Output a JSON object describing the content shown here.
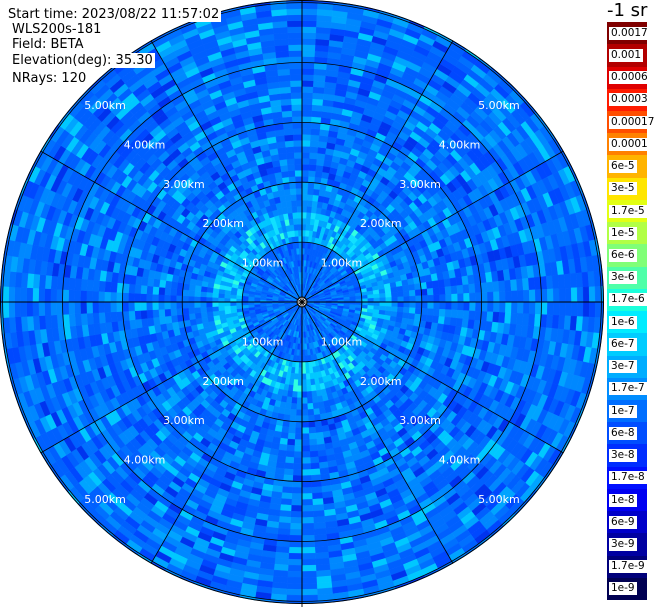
{
  "info": {
    "start_time": "Start time: 2023/08/22 11:57:02",
    "instrument": "WLS200s-181",
    "field": "Field: BETA",
    "elevation": "Elevation(deg): 35.30",
    "nrays": "NRays: 120"
  },
  "colorbar": {
    "title": "-1 sr",
    "labels": [
      "0.0017",
      "0.001",
      "0.0006",
      "0.0003",
      "0.00017",
      "0.0001",
      "6e-5",
      "3e-5",
      "1.7e-5",
      "1e-5",
      "6e-6",
      "3e-6",
      "1.7e-6",
      "1e-6",
      "6e-7",
      "3e-7",
      "1.7e-7",
      "1e-7",
      "6e-8",
      "3e-8",
      "1.7e-8",
      "1e-8",
      "6e-9",
      "3e-9",
      "1.7e-9",
      "1e-9"
    ],
    "colors": [
      "#7f0000",
      "#b20000",
      "#df0000",
      "#ff1b00",
      "#ff4e00",
      "#ff8100",
      "#ffb400",
      "#ffe500",
      "#e2ff14",
      "#b1ff45",
      "#80ff77",
      "#4effa8",
      "#1cffdb",
      "#00ecff",
      "#00ccff",
      "#00adff",
      "#008dff",
      "#006eff",
      "#004eff",
      "#002eff",
      "#000fff",
      "#0000f1",
      "#0000c9",
      "#0000a1",
      "#00007a",
      "#000052"
    ]
  },
  "chart_data": {
    "type": "heatmap",
    "subtype": "polar PPI scan",
    "field": "BETA",
    "units": "-1 sr",
    "scale": "log",
    "nrays": 120,
    "elevation_deg": 35.3,
    "range_rings_km": [
      1,
      2,
      3,
      4,
      5
    ],
    "range_ring_labels": [
      "1.00km",
      "2.00km",
      "3.00km",
      "4.00km",
      "5.00km"
    ],
    "max_range_km": 5.0,
    "azimuth_spokes_deg": [
      0,
      30,
      60,
      90,
      120,
      150,
      180,
      210,
      240,
      270,
      300,
      330
    ],
    "dominant_value_range": [
      "1.7e-8",
      "1.7e-7"
    ],
    "notes_values": {
      "near_range_0_to_1.5km": "6e-8",
      "ring_1_to_1.5km": "1.7e-7",
      "far_range_2_to_5km": "3e-8"
    }
  }
}
